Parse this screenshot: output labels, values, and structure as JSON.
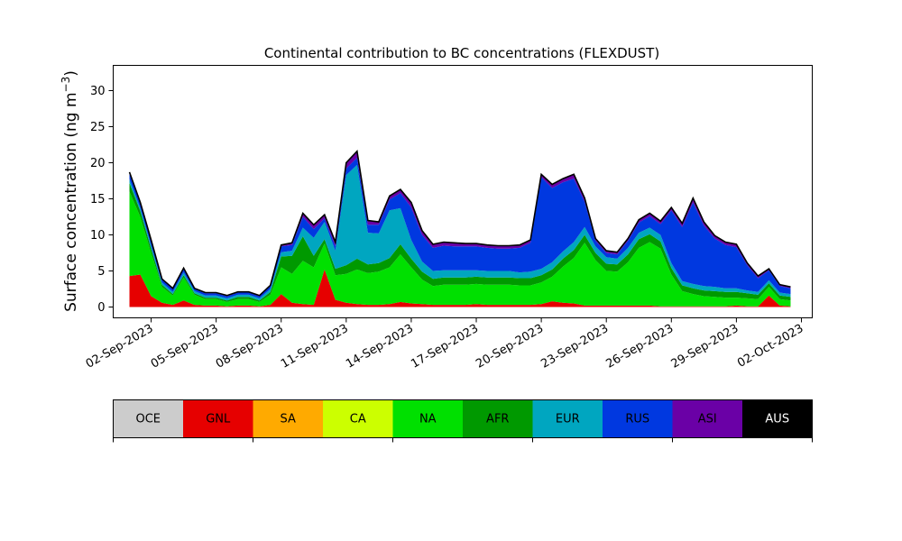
{
  "chart_data": {
    "type": "area",
    "title": "Continental contribution to BC concentrations (FLEXDUST)",
    "ylabel_main": "Surface concentration (ng m",
    "ylabel_sup": "−3",
    "ylabel_close": ")",
    "ylim": [
      -1.5,
      33.5
    ],
    "yticks": [
      0,
      5,
      10,
      15,
      20,
      25,
      30
    ],
    "xlim": [
      "2023-08-31T06:00",
      "2023-10-02T12:00"
    ],
    "xticks": [
      "02-Sep-2023",
      "05-Sep-2023",
      "08-Sep-2023",
      "11-Sep-2023",
      "14-Sep-2023",
      "17-Sep-2023",
      "20-Sep-2023",
      "23-Sep-2023",
      "26-Sep-2023",
      "29-Sep-2023",
      "02-Oct-2023"
    ],
    "xtick_dates": [
      "2023-09-02",
      "2023-09-05",
      "2023-09-08",
      "2023-09-11",
      "2023-09-14",
      "2023-09-17",
      "2023-09-20",
      "2023-09-23",
      "2023-09-26",
      "2023-09-29",
      "2023-10-02"
    ],
    "x": [
      "2023-09-01T00:00",
      "2023-09-01T12:00",
      "2023-09-02T00:00",
      "2023-09-02T12:00",
      "2023-09-03T00:00",
      "2023-09-03T12:00",
      "2023-09-04T00:00",
      "2023-09-04T12:00",
      "2023-09-05T00:00",
      "2023-09-05T12:00",
      "2023-09-06T00:00",
      "2023-09-06T12:00",
      "2023-09-07T00:00",
      "2023-09-07T12:00",
      "2023-09-08T00:00",
      "2023-09-08T12:00",
      "2023-09-09T00:00",
      "2023-09-09T12:00",
      "2023-09-10T00:00",
      "2023-09-10T12:00",
      "2023-09-11T00:00",
      "2023-09-11T12:00",
      "2023-09-12T00:00",
      "2023-09-12T12:00",
      "2023-09-13T00:00",
      "2023-09-13T12:00",
      "2023-09-14T00:00",
      "2023-09-14T12:00",
      "2023-09-15T00:00",
      "2023-09-15T12:00",
      "2023-09-16T00:00",
      "2023-09-16T12:00",
      "2023-09-17T00:00",
      "2023-09-17T12:00",
      "2023-09-18T00:00",
      "2023-09-18T12:00",
      "2023-09-19T00:00",
      "2023-09-19T12:00",
      "2023-09-20T00:00",
      "2023-09-20T12:00",
      "2023-09-21T00:00",
      "2023-09-21T12:00",
      "2023-09-22T00:00",
      "2023-09-22T12:00",
      "2023-09-23T00:00",
      "2023-09-23T12:00",
      "2023-09-24T00:00",
      "2023-09-24T12:00",
      "2023-09-25T00:00",
      "2023-09-25T12:00",
      "2023-09-26T00:00",
      "2023-09-26T12:00",
      "2023-09-27T00:00",
      "2023-09-27T12:00",
      "2023-09-28T00:00",
      "2023-09-28T12:00",
      "2023-09-29T00:00",
      "2023-09-29T12:00",
      "2023-09-30T00:00",
      "2023-09-30T12:00",
      "2023-10-01T00:00",
      "2023-10-01T12:00"
    ],
    "series": [
      {
        "name": "OCE",
        "color": "#cccccc",
        "values": [
          0,
          0,
          0,
          0,
          0,
          0,
          0,
          0,
          0,
          0,
          0,
          0,
          0,
          0,
          0,
          0,
          0,
          0,
          0,
          0,
          0,
          0,
          0,
          0,
          0,
          0,
          0,
          0,
          0,
          0,
          0,
          0,
          0,
          0,
          0,
          0,
          0,
          0,
          0,
          0,
          0,
          0,
          0,
          0,
          0,
          0,
          0,
          0,
          0,
          0,
          0,
          0,
          0,
          0,
          0,
          0,
          0,
          0,
          0,
          0,
          0,
          0
        ]
      },
      {
        "name": "GNL",
        "color": "#e60000",
        "values": [
          4.3,
          4.5,
          1.5,
          0.6,
          0.3,
          0.9,
          0.3,
          0.2,
          0.2,
          0.1,
          0.2,
          0.2,
          0.1,
          0.3,
          1.8,
          0.6,
          0.4,
          0.3,
          5.2,
          1.0,
          0.6,
          0.4,
          0.3,
          0.3,
          0.4,
          0.7,
          0.5,
          0.4,
          0.3,
          0.3,
          0.3,
          0.3,
          0.4,
          0.3,
          0.3,
          0.3,
          0.3,
          0.3,
          0.4,
          0.8,
          0.6,
          0.5,
          0.2,
          0.2,
          0.2,
          0.2,
          0.2,
          0.2,
          0.2,
          0.1,
          0.1,
          0.1,
          0.1,
          0.1,
          0.1,
          0.1,
          0.2,
          0.1,
          0.1,
          1.6,
          0.2,
          0.1
        ]
      },
      {
        "name": "SA",
        "color": "#ffaa00",
        "values": [
          0,
          0,
          0,
          0,
          0,
          0,
          0,
          0,
          0,
          0,
          0,
          0,
          0,
          0,
          0,
          0,
          0,
          0,
          0,
          0,
          0,
          0,
          0,
          0,
          0,
          0,
          0,
          0,
          0,
          0,
          0,
          0,
          0,
          0,
          0,
          0,
          0,
          0,
          0,
          0,
          0,
          0,
          0,
          0,
          0,
          0,
          0,
          0,
          0,
          0,
          0,
          0,
          0,
          0,
          0,
          0,
          0,
          0,
          0,
          0,
          0,
          0
        ]
      },
      {
        "name": "CA",
        "color": "#ccff00",
        "values": [
          0,
          0,
          0,
          0,
          0,
          0,
          0,
          0,
          0,
          0,
          0,
          0,
          0,
          0,
          0,
          0,
          0,
          0,
          0,
          0,
          0,
          0,
          0,
          0,
          0,
          0,
          0,
          0,
          0,
          0,
          0,
          0,
          0,
          0,
          0,
          0,
          0,
          0,
          0,
          0,
          0,
          0,
          0,
          0,
          0,
          0,
          0,
          0,
          0,
          0,
          0,
          0,
          0,
          0,
          0,
          0,
          0,
          0,
          0,
          0,
          0,
          0
        ]
      },
      {
        "name": "NA",
        "color": "#00e000",
        "values": [
          11.7,
          8.0,
          6.0,
          2.2,
          1.3,
          3.2,
          1.4,
          0.9,
          0.9,
          0.6,
          0.9,
          0.9,
          0.6,
          1.4,
          3.7,
          4.0,
          6.0,
          5.2,
          3.6,
          3.4,
          4.0,
          4.8,
          4.4,
          4.6,
          5.1,
          6.6,
          5.0,
          3.4,
          2.6,
          2.8,
          2.8,
          2.8,
          2.8,
          2.8,
          2.8,
          2.8,
          2.7,
          2.7,
          3.0,
          3.4,
          5.0,
          6.3,
          8.7,
          6.3,
          4.8,
          4.7,
          6.0,
          8.0,
          8.8,
          8.0,
          4.4,
          2.1,
          1.7,
          1.4,
          1.3,
          1.2,
          1.1,
          1.1,
          1.0,
          1.2,
          0.9,
          0.8
        ]
      },
      {
        "name": "AFR",
        "color": "#009900",
        "values": [
          1.2,
          0.8,
          0.6,
          0.3,
          0.2,
          0.3,
          0.2,
          0.2,
          0.2,
          0.2,
          0.3,
          0.3,
          0.2,
          0.4,
          1.5,
          2.5,
          3.4,
          1.6,
          0.6,
          0.9,
          1.2,
          1.5,
          1.2,
          1.2,
          1.3,
          1.4,
          1.2,
          1.1,
          1.0,
          1.0,
          1.0,
          1.0,
          1.0,
          1.0,
          1.0,
          1.0,
          1.0,
          1.0,
          1.0,
          1.0,
          1.1,
          1.1,
          1.1,
          1.0,
          1.0,
          1.0,
          1.1,
          1.2,
          1.1,
          1.0,
          0.9,
          0.8,
          0.8,
          0.8,
          0.8,
          0.8,
          0.8,
          0.7,
          0.6,
          0.5,
          0.5,
          0.5
        ]
      },
      {
        "name": "EUR",
        "color": "#00a6c0",
        "values": [
          0.5,
          0.4,
          0.4,
          0.3,
          0.3,
          0.4,
          0.3,
          0.3,
          0.3,
          0.3,
          0.3,
          0.3,
          0.3,
          0.4,
          0.6,
          0.7,
          1.2,
          2.5,
          2.4,
          2.5,
          12.5,
          13.0,
          4.4,
          4.1,
          6.6,
          5.0,
          2.6,
          1.4,
          1.1,
          1.0,
          1.0,
          1.0,
          0.9,
          0.9,
          0.9,
          0.9,
          0.8,
          0.9,
          0.9,
          1.0,
          1.0,
          1.1,
          1.1,
          0.9,
          0.9,
          0.8,
          0.9,
          0.9,
          0.9,
          0.9,
          0.7,
          0.6,
          0.6,
          0.6,
          0.6,
          0.5,
          0.5,
          0.4,
          0.4,
          0.4,
          0.4,
          0.4
        ]
      },
      {
        "name": "RUS",
        "color": "#0038e0",
        "values": [
          0.8,
          0.7,
          0.7,
          0.4,
          0.4,
          0.5,
          0.3,
          0.3,
          0.3,
          0.3,
          0.3,
          0.3,
          0.3,
          0.4,
          0.8,
          0.8,
          1.5,
          1.2,
          0.5,
          0.6,
          0.9,
          1.0,
          1.1,
          1.2,
          1.5,
          2.1,
          4.5,
          3.7,
          3.2,
          3.4,
          3.3,
          3.3,
          3.3,
          3.2,
          3.1,
          3.1,
          3.4,
          4.0,
          12.7,
          10.3,
          9.6,
          8.8,
          3.5,
          0.8,
          0.6,
          0.6,
          1.0,
          1.4,
          1.6,
          1.5,
          7.3,
          7.5,
          11.3,
          8.4,
          6.7,
          6.0,
          5.7,
          3.5,
          1.9,
          1.4,
          0.9,
          0.8
        ]
      },
      {
        "name": "ASI",
        "color": "#6a00a6",
        "values": [
          0.2,
          0.1,
          0.1,
          0.1,
          0.1,
          0.1,
          0.1,
          0.1,
          0.1,
          0.1,
          0.1,
          0.1,
          0.1,
          0.1,
          0.2,
          0.3,
          0.5,
          0.6,
          0.5,
          0.6,
          0.8,
          0.9,
          0.6,
          0.4,
          0.5,
          0.5,
          0.7,
          0.6,
          0.5,
          0.5,
          0.5,
          0.4,
          0.4,
          0.4,
          0.4,
          0.4,
          0.4,
          0.4,
          0.4,
          0.5,
          0.5,
          0.6,
          0.5,
          0.3,
          0.3,
          0.3,
          0.3,
          0.4,
          0.4,
          0.4,
          0.4,
          0.5,
          0.6,
          0.5,
          0.4,
          0.4,
          0.4,
          0.3,
          0.3,
          0.2,
          0.2,
          0.2
        ]
      },
      {
        "name": "AUS",
        "color": "#000000",
        "values": [
          0,
          0,
          0,
          0,
          0,
          0,
          0,
          0,
          0,
          0,
          0,
          0,
          0,
          0,
          0,
          0,
          0,
          0,
          0,
          0,
          0,
          0,
          0,
          0,
          0,
          0,
          0,
          0,
          0,
          0,
          0,
          0,
          0,
          0,
          0,
          0,
          0,
          0,
          0,
          0,
          0,
          0,
          0,
          0,
          0,
          0,
          0,
          0,
          0,
          0,
          0,
          0,
          0,
          0,
          0,
          0,
          0,
          0,
          0,
          0,
          0,
          0
        ]
      }
    ],
    "total_line_color": "#000000",
    "legend_placement": "bottom-colorbar",
    "grid": false
  }
}
